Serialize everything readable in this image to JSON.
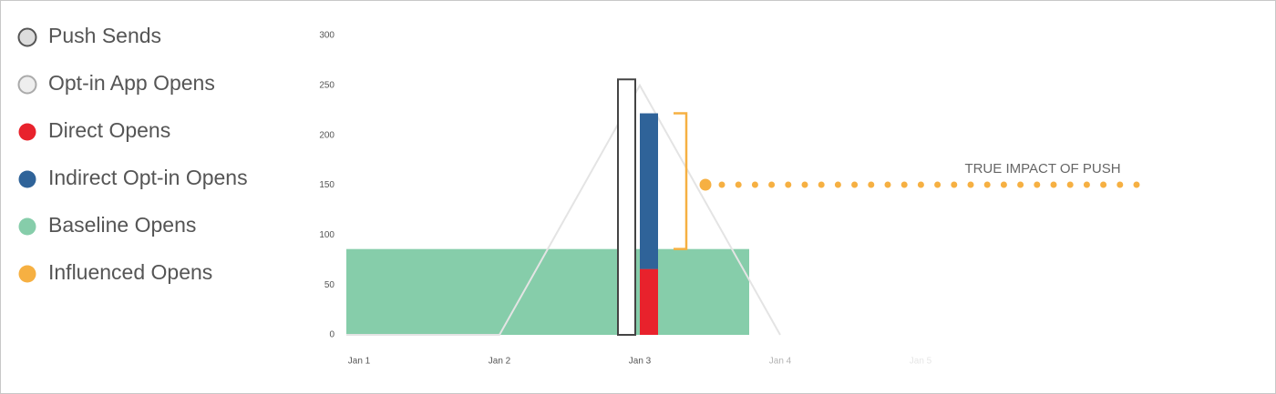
{
  "chart_data": {
    "type": "bar",
    "categories": [
      "Jan 1",
      "Jan 2",
      "Jan 3",
      "Jan 4",
      "Jan 5"
    ],
    "ylim": [
      0,
      300
    ],
    "yticks": [
      0,
      50,
      100,
      150,
      200,
      250,
      300
    ],
    "grid": true,
    "series": [
      {
        "name": "Push Sends",
        "color": "#dddddd",
        "values": [
          null,
          null,
          256,
          null,
          null
        ]
      },
      {
        "name": "Opt-in App Opens",
        "color": "#eeeeee",
        "values": [
          0,
          0,
          250,
          0,
          null
        ]
      },
      {
        "name": "Direct Opens",
        "color": "#e8222c",
        "values": [
          null,
          null,
          66,
          null,
          null
        ]
      },
      {
        "name": "Indirect Opt-in Opens",
        "color": "#2f6399",
        "values": [
          null,
          null,
          156,
          null,
          null
        ]
      },
      {
        "name": "Baseline Opens",
        "color": "#86cdaa",
        "values": [
          86,
          86,
          86,
          null,
          null
        ]
      },
      {
        "name": "Influenced Opens",
        "color": "#f6b042",
        "values": [
          null,
          null,
          136,
          null,
          null
        ]
      }
    ],
    "annotation": "TRUE IMPACT OF PUSH"
  }
}
